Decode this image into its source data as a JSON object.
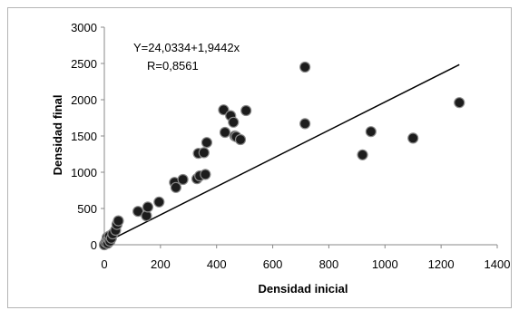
{
  "chart_data": {
    "type": "scatter",
    "xlabel": "Densidad inicial",
    "ylabel": "Densidad final",
    "xlim": [
      0,
      1400
    ],
    "ylim": [
      0,
      3000
    ],
    "x_ticks": [
      "0",
      "200",
      "400",
      "600",
      "800",
      "1000",
      "1200",
      "1400"
    ],
    "y_ticks": [
      "0",
      "500",
      "1000",
      "1500",
      "2000",
      "2500",
      "3000"
    ],
    "grid": false,
    "annotations": {
      "equation": "Y=24,0334+1,9442x",
      "r": "R=0,8561"
    },
    "trendline": {
      "intercept": 24.0334,
      "slope": 1.9442,
      "x_range": [
        0,
        1265
      ]
    },
    "series": [
      {
        "x": [
          0,
          5,
          8,
          10,
          12,
          15,
          18,
          20,
          25,
          30,
          40,
          45,
          50,
          120,
          150,
          155,
          195,
          250,
          255,
          280,
          330,
          335,
          340,
          355,
          360,
          365,
          425,
          430,
          450,
          460,
          465,
          470,
          485,
          505,
          715,
          715,
          920,
          950,
          1100,
          1265
        ],
        "y": [
          0,
          30,
          60,
          100,
          20,
          80,
          120,
          50,
          90,
          150,
          200,
          280,
          330,
          460,
          400,
          520,
          590,
          860,
          790,
          900,
          910,
          1260,
          950,
          1270,
          970,
          1410,
          1860,
          1550,
          1780,
          1690,
          1500,
          1490,
          1450,
          1850,
          2450,
          1670,
          1240,
          1560,
          1470,
          1960
        ]
      }
    ]
  }
}
